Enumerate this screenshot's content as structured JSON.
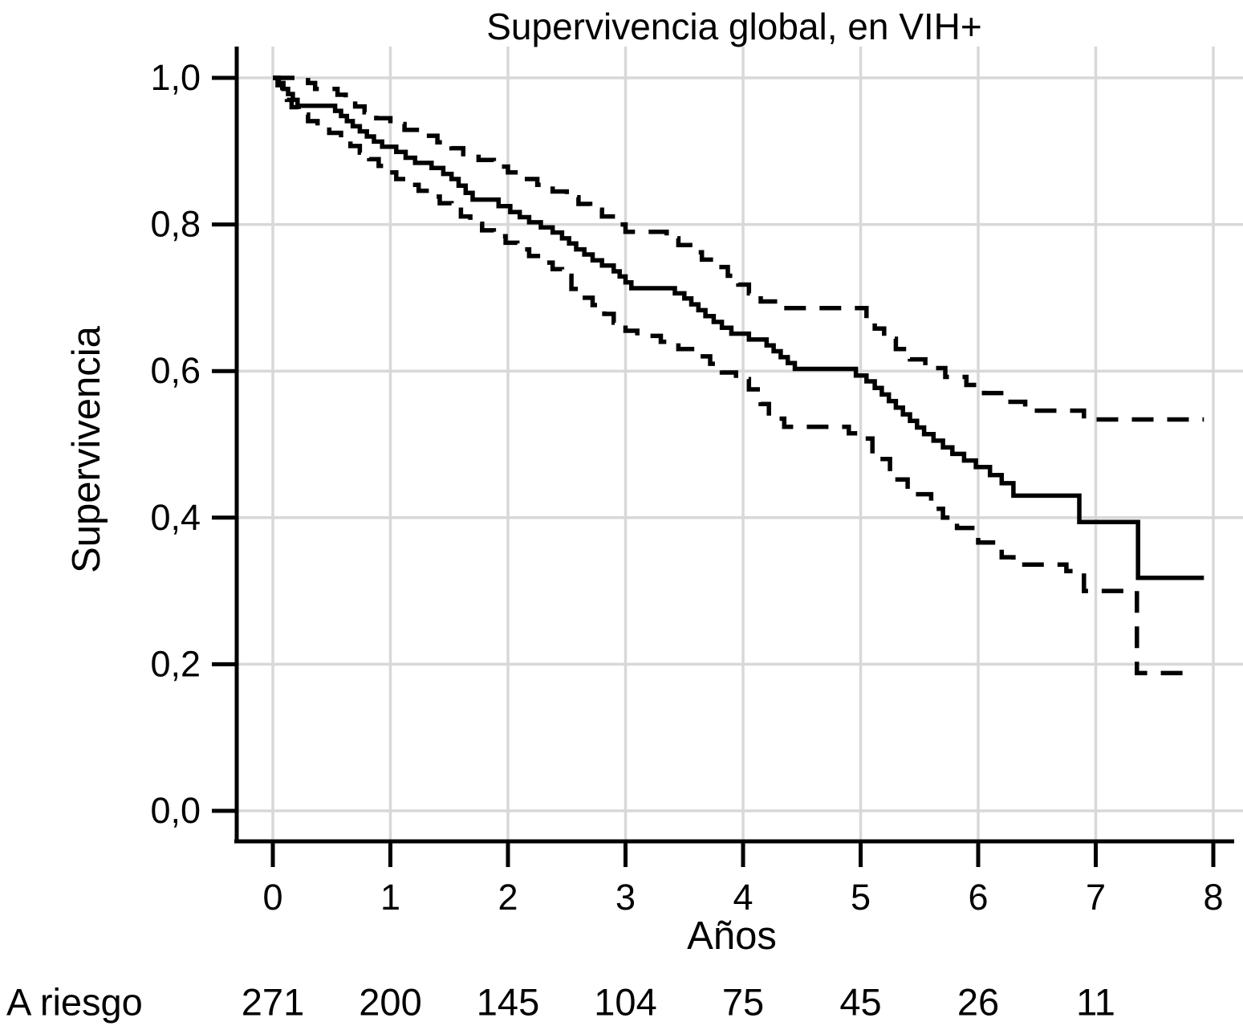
{
  "title": "Supervivencia global, en VIH+",
  "colors": {
    "curve": "#000000",
    "axis": "#000000",
    "grid": "#d8d8d8",
    "background": "#ffffff"
  },
  "chart_data": {
    "type": "line",
    "subtype": "kaplan-meier-survival-steps",
    "title": "Supervivencia global, en VIH+",
    "xlabel": "Años",
    "ylabel": "Supervivencia",
    "xlim": [
      0,
      8
    ],
    "ylim": [
      0.0,
      1.0
    ],
    "grid": true,
    "x_ticks": [
      "0",
      "1",
      "2",
      "3",
      "4",
      "5",
      "6",
      "7",
      "8"
    ],
    "x_tick_values": [
      0,
      1,
      2,
      3,
      4,
      5,
      6,
      7,
      8
    ],
    "y_tick_labels": [
      "1,0",
      "0,8",
      "0,6",
      "0,4",
      "0,2",
      "0,0"
    ],
    "y_tick_values": [
      1.0,
      0.8,
      0.6,
      0.4,
      0.2,
      0.0
    ],
    "legend": "none",
    "series": [
      {
        "name": "survival-estimate",
        "style": "solid",
        "end": 7.92,
        "steps": [
          [
            0,
            1.0
          ],
          [
            0.05,
            0.993
          ],
          [
            0.09,
            0.985
          ],
          [
            0.13,
            0.978
          ],
          [
            0.17,
            0.97
          ],
          [
            0.21,
            0.962
          ],
          [
            0.53,
            0.955
          ],
          [
            0.58,
            0.948
          ],
          [
            0.63,
            0.941
          ],
          [
            0.68,
            0.934
          ],
          [
            0.74,
            0.927
          ],
          [
            0.8,
            0.92
          ],
          [
            0.86,
            0.913
          ],
          [
            0.93,
            0.906
          ],
          [
            1.05,
            0.899
          ],
          [
            1.13,
            0.891
          ],
          [
            1.21,
            0.884
          ],
          [
            1.35,
            0.877
          ],
          [
            1.45,
            0.869
          ],
          [
            1.52,
            0.862
          ],
          [
            1.58,
            0.853
          ],
          [
            1.64,
            0.843
          ],
          [
            1.7,
            0.834
          ],
          [
            1.92,
            0.825
          ],
          [
            2.02,
            0.817
          ],
          [
            2.1,
            0.81
          ],
          [
            2.18,
            0.803
          ],
          [
            2.28,
            0.796
          ],
          [
            2.38,
            0.789
          ],
          [
            2.46,
            0.781
          ],
          [
            2.52,
            0.774
          ],
          [
            2.58,
            0.766
          ],
          [
            2.65,
            0.759
          ],
          [
            2.72,
            0.751
          ],
          [
            2.8,
            0.744
          ],
          [
            2.9,
            0.736
          ],
          [
            2.95,
            0.729
          ],
          [
            3.0,
            0.721
          ],
          [
            3.05,
            0.713
          ],
          [
            3.42,
            0.706
          ],
          [
            3.5,
            0.699
          ],
          [
            3.56,
            0.691
          ],
          [
            3.62,
            0.683
          ],
          [
            3.68,
            0.675
          ],
          [
            3.75,
            0.667
          ],
          [
            3.82,
            0.659
          ],
          [
            3.9,
            0.651
          ],
          [
            4.05,
            0.643
          ],
          [
            4.2,
            0.635
          ],
          [
            4.26,
            0.627
          ],
          [
            4.32,
            0.619
          ],
          [
            4.38,
            0.611
          ],
          [
            4.44,
            0.603
          ],
          [
            4.96,
            0.594
          ],
          [
            5.05,
            0.586
          ],
          [
            5.12,
            0.577
          ],
          [
            5.18,
            0.568
          ],
          [
            5.24,
            0.559
          ],
          [
            5.3,
            0.55
          ],
          [
            5.36,
            0.541
          ],
          [
            5.42,
            0.532
          ],
          [
            5.48,
            0.523
          ],
          [
            5.54,
            0.514
          ],
          [
            5.62,
            0.505
          ],
          [
            5.7,
            0.496
          ],
          [
            5.78,
            0.487
          ],
          [
            5.88,
            0.478
          ],
          [
            5.98,
            0.469
          ],
          [
            6.1,
            0.458
          ],
          [
            6.2,
            0.447
          ],
          [
            6.3,
            0.43
          ],
          [
            6.86,
            0.394
          ],
          [
            7.36,
            0.318
          ]
        ]
      },
      {
        "name": "upper-confidence-limit",
        "style": "dashed",
        "end": 7.92,
        "steps": [
          [
            0,
            1.0
          ],
          [
            0.3,
            0.993
          ],
          [
            0.36,
            0.985
          ],
          [
            0.55,
            0.977
          ],
          [
            0.62,
            0.969
          ],
          [
            0.7,
            0.961
          ],
          [
            0.78,
            0.953
          ],
          [
            0.88,
            0.945
          ],
          [
            1.0,
            0.937
          ],
          [
            1.12,
            0.929
          ],
          [
            1.25,
            0.921
          ],
          [
            1.4,
            0.912
          ],
          [
            1.52,
            0.904
          ],
          [
            1.62,
            0.896
          ],
          [
            1.75,
            0.888
          ],
          [
            1.88,
            0.879
          ],
          [
            2.0,
            0.871
          ],
          [
            2.12,
            0.862
          ],
          [
            2.25,
            0.854
          ],
          [
            2.38,
            0.845
          ],
          [
            2.5,
            0.837
          ],
          [
            2.6,
            0.828
          ],
          [
            2.7,
            0.82
          ],
          [
            2.8,
            0.811
          ],
          [
            2.92,
            0.8
          ],
          [
            3.0,
            0.79
          ],
          [
            3.35,
            0.781
          ],
          [
            3.45,
            0.772
          ],
          [
            3.55,
            0.762
          ],
          [
            3.65,
            0.752
          ],
          [
            3.76,
            0.742
          ],
          [
            3.87,
            0.73
          ],
          [
            3.96,
            0.718
          ],
          [
            4.05,
            0.706
          ],
          [
            4.15,
            0.695
          ],
          [
            4.3,
            0.686
          ],
          [
            5.05,
            0.672
          ],
          [
            5.12,
            0.658
          ],
          [
            5.2,
            0.644
          ],
          [
            5.3,
            0.63
          ],
          [
            5.42,
            0.616
          ],
          [
            5.55,
            0.604
          ],
          [
            5.72,
            0.592
          ],
          [
            5.9,
            0.581
          ],
          [
            6.05,
            0.57
          ],
          [
            6.22,
            0.558
          ],
          [
            6.4,
            0.546
          ],
          [
            6.9,
            0.534
          ]
        ]
      },
      {
        "name": "lower-confidence-limit",
        "style": "dashed",
        "end": 7.8,
        "steps": [
          [
            0,
            1.0
          ],
          [
            0.04,
            0.99
          ],
          [
            0.08,
            0.98
          ],
          [
            0.12,
            0.97
          ],
          [
            0.16,
            0.96
          ],
          [
            0.22,
            0.95
          ],
          [
            0.3,
            0.941
          ],
          [
            0.38,
            0.933
          ],
          [
            0.48,
            0.925
          ],
          [
            0.58,
            0.916
          ],
          [
            0.66,
            0.907
          ],
          [
            0.74,
            0.898
          ],
          [
            0.82,
            0.889
          ],
          [
            0.9,
            0.88
          ],
          [
            0.97,
            0.871
          ],
          [
            1.05,
            0.862
          ],
          [
            1.14,
            0.854
          ],
          [
            1.24,
            0.846
          ],
          [
            1.33,
            0.838
          ],
          [
            1.42,
            0.829
          ],
          [
            1.52,
            0.82
          ],
          [
            1.6,
            0.811
          ],
          [
            1.68,
            0.801
          ],
          [
            1.78,
            0.792
          ],
          [
            1.88,
            0.784
          ],
          [
            1.98,
            0.775
          ],
          [
            2.08,
            0.766
          ],
          [
            2.18,
            0.757
          ],
          [
            2.28,
            0.748
          ],
          [
            2.38,
            0.739
          ],
          [
            2.46,
            0.73
          ],
          [
            2.54,
            0.712
          ],
          [
            2.62,
            0.7
          ],
          [
            2.72,
            0.69
          ],
          [
            2.82,
            0.678
          ],
          [
            2.9,
            0.666
          ],
          [
            3.0,
            0.655
          ],
          [
            3.1,
            0.648
          ],
          [
            3.3,
            0.64
          ],
          [
            3.45,
            0.63
          ],
          [
            3.6,
            0.62
          ],
          [
            3.72,
            0.61
          ],
          [
            3.82,
            0.598
          ],
          [
            3.94,
            0.589
          ],
          [
            4.05,
            0.575
          ],
          [
            4.15,
            0.555
          ],
          [
            4.22,
            0.535
          ],
          [
            4.35,
            0.524
          ],
          [
            4.9,
            0.515
          ],
          [
            5.0,
            0.508
          ],
          [
            5.1,
            0.48
          ],
          [
            5.25,
            0.452
          ],
          [
            5.4,
            0.432
          ],
          [
            5.6,
            0.412
          ],
          [
            5.7,
            0.4
          ],
          [
            5.82,
            0.386
          ],
          [
            6.0,
            0.366
          ],
          [
            6.2,
            0.346
          ],
          [
            6.3,
            0.336
          ],
          [
            6.75,
            0.327
          ],
          [
            6.9,
            0.3
          ],
          [
            7.35,
            0.188
          ]
        ]
      }
    ],
    "risk_table": {
      "label": "A riesgo",
      "times": [
        0,
        1,
        2,
        3,
        4,
        5,
        6,
        7
      ],
      "counts": [
        271,
        200,
        145,
        104,
        75,
        45,
        26,
        11
      ]
    }
  }
}
